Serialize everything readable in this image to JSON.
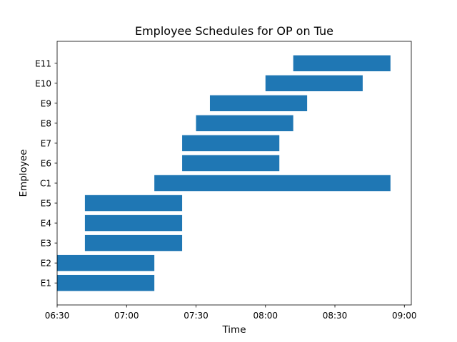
{
  "chart_data": {
    "type": "bar",
    "orientation": "horizontal",
    "title": "Employee Schedules for OP on Tue",
    "xlabel": "Time",
    "ylabel": "Employee",
    "bar_color": "#1f77b4",
    "xlim": [
      "06:30",
      "09:03"
    ],
    "x_ticks": [
      "06:30",
      "07:00",
      "07:30",
      "08:00",
      "08:30",
      "09:00"
    ],
    "categories": [
      "E1",
      "E2",
      "E3",
      "E4",
      "E5",
      "C1",
      "E6",
      "E7",
      "E8",
      "E9",
      "E10",
      "E11"
    ],
    "bars": [
      {
        "employee": "E1",
        "start": "06:30",
        "end": "07:12"
      },
      {
        "employee": "E2",
        "start": "06:30",
        "end": "07:12"
      },
      {
        "employee": "E3",
        "start": "06:42",
        "end": "07:24"
      },
      {
        "employee": "E4",
        "start": "06:42",
        "end": "07:24"
      },
      {
        "employee": "E5",
        "start": "06:42",
        "end": "07:24"
      },
      {
        "employee": "C1",
        "start": "07:12",
        "end": "08:54"
      },
      {
        "employee": "E6",
        "start": "07:24",
        "end": "08:06"
      },
      {
        "employee": "E7",
        "start": "07:24",
        "end": "08:06"
      },
      {
        "employee": "E8",
        "start": "07:30",
        "end": "08:12"
      },
      {
        "employee": "E9",
        "start": "07:36",
        "end": "08:18"
      },
      {
        "employee": "E10",
        "start": "08:00",
        "end": "08:42"
      },
      {
        "employee": "E11",
        "start": "08:12",
        "end": "08:54"
      }
    ],
    "grid": false,
    "legend": "none"
  }
}
